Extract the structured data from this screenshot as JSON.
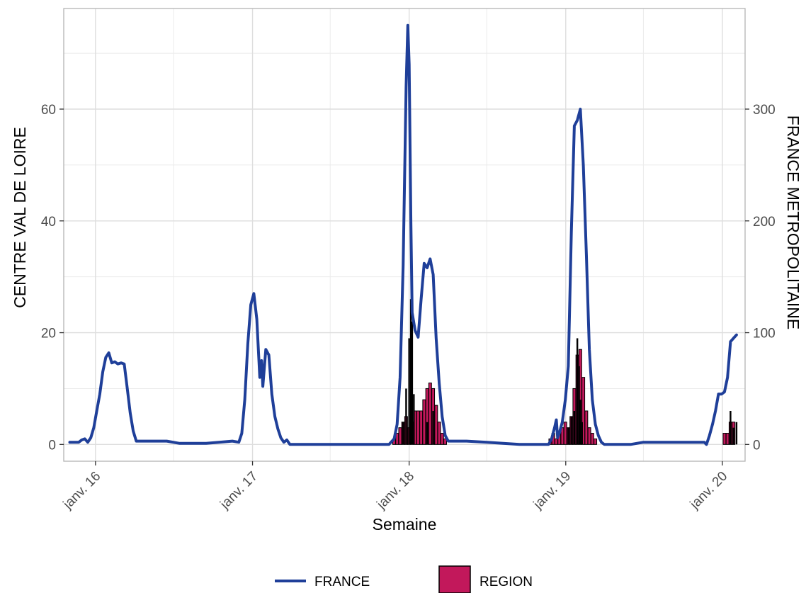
{
  "chart_data": {
    "type": "bar+line",
    "title": "",
    "xlabel": "Semaine",
    "ylabel_left": "CENTRE VAL DE LOIRE",
    "ylabel_right": "FRANCE METROPOLITAINE",
    "x_ticks": [
      "janv. 16",
      "janv. 17",
      "janv. 18",
      "janv. 19",
      "janv. 20"
    ],
    "y_left_ticks": [
      "0",
      "20",
      "40",
      "60"
    ],
    "y_right_ticks": [
      "0",
      "100",
      "200",
      "300"
    ],
    "y_left_lim": [
      -3,
      78
    ],
    "y_right_lim": [
      -15,
      390
    ],
    "grid": true,
    "legend_position": "bottom",
    "series": [
      {
        "name": "FRANCE",
        "kind": "line",
        "axis": "right",
        "color": "#1f3f99",
        "points": [
          [
            "2015-11-02",
            2
          ],
          [
            "2015-11-23",
            2
          ],
          [
            "2015-11-30",
            4
          ],
          [
            "2015-12-07",
            5
          ],
          [
            "2015-12-14",
            2
          ],
          [
            "2015-12-21",
            6
          ],
          [
            "2015-12-28",
            15
          ],
          [
            "2016-01-04",
            30
          ],
          [
            "2016-01-11",
            45
          ],
          [
            "2016-01-18",
            65
          ],
          [
            "2016-01-25",
            78
          ],
          [
            "2016-02-01",
            82
          ],
          [
            "2016-02-08",
            73
          ],
          [
            "2016-02-15",
            74
          ],
          [
            "2016-02-22",
            72
          ],
          [
            "2016-03-01",
            73
          ],
          [
            "2016-03-08",
            72
          ],
          [
            "2016-03-15",
            50
          ],
          [
            "2016-03-22",
            28
          ],
          [
            "2016-03-29",
            12
          ],
          [
            "2016-04-05",
            3
          ],
          [
            "2016-04-12",
            3
          ],
          [
            "2016-05-15",
            3
          ],
          [
            "2016-06-15",
            3
          ],
          [
            "2016-07-15",
            1
          ],
          [
            "2016-09-15",
            1
          ],
          [
            "2016-10-15",
            2
          ],
          [
            "2016-11-15",
            3
          ],
          [
            "2016-11-30",
            2
          ],
          [
            "2016-12-07",
            10
          ],
          [
            "2016-12-14",
            40
          ],
          [
            "2016-12-21",
            90
          ],
          [
            "2016-12-28",
            125
          ],
          [
            "2017-01-04",
            135
          ],
          [
            "2017-01-11",
            112
          ],
          [
            "2017-01-18",
            60
          ],
          [
            "2017-01-22",
            75
          ],
          [
            "2017-01-25",
            52
          ],
          [
            "2017-02-01",
            85
          ],
          [
            "2017-02-08",
            80
          ],
          [
            "2017-02-15",
            45
          ],
          [
            "2017-02-22",
            25
          ],
          [
            "2017-03-01",
            14
          ],
          [
            "2017-03-08",
            6
          ],
          [
            "2017-03-15",
            2
          ],
          [
            "2017-03-22",
            4
          ],
          [
            "2017-03-29",
            0
          ],
          [
            "2017-06-15",
            0
          ],
          [
            "2017-09-15",
            0
          ],
          [
            "2017-11-15",
            0
          ],
          [
            "2017-11-27",
            5
          ],
          [
            "2017-12-04",
            18
          ],
          [
            "2017-12-11",
            60
          ],
          [
            "2017-12-18",
            160
          ],
          [
            "2017-12-25",
            320
          ],
          [
            "2017-12-29",
            375
          ],
          [
            "2018-01-01",
            340
          ],
          [
            "2018-01-05",
            200
          ],
          [
            "2018-01-08",
            118
          ],
          [
            "2018-01-15",
            102
          ],
          [
            "2018-01-22",
            96
          ],
          [
            "2018-01-29",
            130
          ],
          [
            "2018-02-05",
            162
          ],
          [
            "2018-02-12",
            158
          ],
          [
            "2018-02-19",
            166
          ],
          [
            "2018-02-26",
            152
          ],
          [
            "2018-03-05",
            95
          ],
          [
            "2018-03-12",
            55
          ],
          [
            "2018-03-19",
            25
          ],
          [
            "2018-03-26",
            8
          ],
          [
            "2018-04-02",
            3
          ],
          [
            "2018-05-15",
            3
          ],
          [
            "2018-07-01",
            2
          ],
          [
            "2018-09-15",
            0
          ],
          [
            "2018-11-15",
            0
          ],
          [
            "2018-11-22",
            0
          ],
          [
            "2018-11-29",
            5
          ],
          [
            "2018-12-06",
            15
          ],
          [
            "2018-12-10",
            22
          ],
          [
            "2018-12-13",
            6
          ],
          [
            "2018-12-17",
            10
          ],
          [
            "2018-12-24",
            20
          ],
          [
            "2018-12-31",
            40
          ],
          [
            "2019-01-07",
            70
          ],
          [
            "2019-01-14",
            190
          ],
          [
            "2019-01-21",
            285
          ],
          [
            "2019-01-28",
            290
          ],
          [
            "2019-02-04",
            300
          ],
          [
            "2019-02-11",
            250
          ],
          [
            "2019-02-18",
            170
          ],
          [
            "2019-02-25",
            85
          ],
          [
            "2019-03-04",
            40
          ],
          [
            "2019-03-11",
            18
          ],
          [
            "2019-03-18",
            8
          ],
          [
            "2019-03-25",
            2
          ],
          [
            "2019-04-01",
            0
          ],
          [
            "2019-06-01",
            0
          ],
          [
            "2019-07-01",
            2
          ],
          [
            "2019-09-15",
            2
          ],
          [
            "2019-11-20",
            2
          ],
          [
            "2019-11-25",
            0
          ],
          [
            "2019-12-02",
            8
          ],
          [
            "2019-12-09",
            18
          ],
          [
            "2019-12-16",
            30
          ],
          [
            "2019-12-23",
            45
          ],
          [
            "2019-12-30",
            45
          ],
          [
            "2020-01-06",
            47
          ],
          [
            "2020-01-13",
            60
          ],
          [
            "2020-01-20",
            92
          ],
          [
            "2020-01-27",
            95
          ],
          [
            "2020-02-03",
            98
          ]
        ]
      },
      {
        "name": "REGION",
        "kind": "bar",
        "axis": "left",
        "colors": {
          "fill": "#c2185b",
          "outline": "#000000"
        },
        "weeks": [
          [
            "2017-11-27",
            1
          ],
          [
            "2017-12-04",
            2
          ],
          [
            "2017-12-11",
            3
          ],
          [
            "2017-12-18",
            4
          ],
          [
            "2017-12-25",
            5
          ],
          [
            "2018-01-01",
            3
          ],
          [
            "2018-01-08",
            4
          ],
          [
            "2018-01-15",
            6
          ],
          [
            "2018-01-22",
            6
          ],
          [
            "2018-01-29",
            6
          ],
          [
            "2018-02-05",
            8
          ],
          [
            "2018-02-12",
            10
          ],
          [
            "2018-02-19",
            11
          ],
          [
            "2018-02-26",
            10
          ],
          [
            "2018-03-05",
            7
          ],
          [
            "2018-03-12",
            4
          ],
          [
            "2018-03-19",
            2
          ],
          [
            "2018-03-26",
            1
          ],
          [
            "2018-11-26",
            1
          ],
          [
            "2018-12-03",
            2
          ],
          [
            "2018-12-10",
            1
          ],
          [
            "2018-12-17",
            2
          ],
          [
            "2018-12-24",
            3
          ],
          [
            "2018-12-31",
            4
          ],
          [
            "2019-01-07",
            3
          ],
          [
            "2019-01-14",
            5
          ],
          [
            "2019-01-21",
            10
          ],
          [
            "2019-01-28",
            16
          ],
          [
            "2019-02-04",
            17
          ],
          [
            "2019-02-11",
            12
          ],
          [
            "2019-02-18",
            6
          ],
          [
            "2019-02-25",
            3
          ],
          [
            "2019-03-04",
            2
          ],
          [
            "2019-03-11",
            1
          ],
          [
            "2020-01-06",
            2
          ],
          [
            "2020-01-13",
            2
          ],
          [
            "2020-01-20",
            4
          ],
          [
            "2020-01-27",
            4
          ]
        ],
        "stacked_black": [
          [
            "2017-12-18",
            4
          ],
          [
            "2017-12-25",
            10
          ],
          [
            "2018-01-01",
            19
          ],
          [
            "2018-01-05",
            26
          ],
          [
            "2018-01-08",
            22
          ],
          [
            "2018-01-12",
            9
          ],
          [
            "2018-02-12",
            4
          ],
          [
            "2018-02-26",
            6
          ],
          [
            "2019-01-07",
            3
          ],
          [
            "2019-01-14",
            5
          ],
          [
            "2019-01-21",
            6
          ],
          [
            "2019-01-28",
            19
          ],
          [
            "2019-02-01",
            14
          ],
          [
            "2019-02-04",
            8
          ],
          [
            "2019-02-08",
            4
          ],
          [
            "2020-01-20",
            6
          ],
          [
            "2020-01-27",
            3
          ],
          [
            "2020-02-03",
            4
          ]
        ]
      }
    ],
    "legend": [
      {
        "label": "FRANCE",
        "swatch": "line",
        "color": "#1f3f99"
      },
      {
        "label": "REGION",
        "swatch": "box",
        "color": "#c2185b"
      }
    ]
  }
}
